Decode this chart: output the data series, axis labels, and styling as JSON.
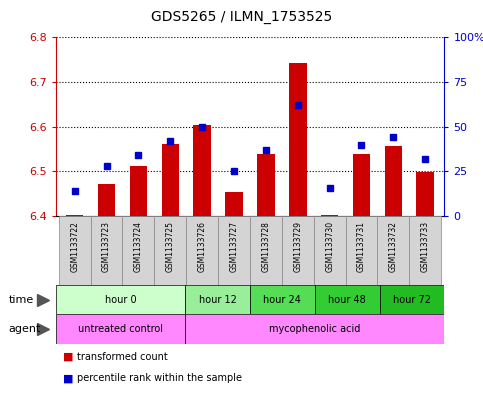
{
  "title": "GDS5265 / ILMN_1753525",
  "samples": [
    "GSM1133722",
    "GSM1133723",
    "GSM1133724",
    "GSM1133725",
    "GSM1133726",
    "GSM1133727",
    "GSM1133728",
    "GSM1133729",
    "GSM1133730",
    "GSM1133731",
    "GSM1133732",
    "GSM1133733"
  ],
  "transformed_counts": [
    6.402,
    6.472,
    6.512,
    6.562,
    6.603,
    6.455,
    6.538,
    6.742,
    6.402,
    6.54,
    6.558,
    6.498
  ],
  "percentile_ranks": [
    14,
    28,
    34,
    42,
    50,
    25,
    37,
    62,
    16,
    40,
    44,
    32
  ],
  "ylim_left": [
    6.4,
    6.8
  ],
  "ylim_right": [
    0,
    100
  ],
  "yticks_left": [
    6.4,
    6.5,
    6.6,
    6.7,
    6.8
  ],
  "yticks_right": [
    0,
    25,
    50,
    75,
    100
  ],
  "ytick_labels_right": [
    "0",
    "25",
    "50",
    "75",
    "100%"
  ],
  "bar_color": "#cc0000",
  "dot_color": "#0000cc",
  "bar_bottom": 6.4,
  "time_groups": [
    {
      "label": "hour 0",
      "start": 0,
      "end": 4,
      "color": "#ccffcc"
    },
    {
      "label": "hour 12",
      "start": 4,
      "end": 6,
      "color": "#99ee99"
    },
    {
      "label": "hour 24",
      "start": 6,
      "end": 8,
      "color": "#55dd55"
    },
    {
      "label": "hour 48",
      "start": 8,
      "end": 10,
      "color": "#33cc33"
    },
    {
      "label": "hour 72",
      "start": 10,
      "end": 12,
      "color": "#22bb22"
    }
  ],
  "agent_groups": [
    {
      "label": "untreated control",
      "start": 0,
      "end": 4,
      "color": "#ff88ff"
    },
    {
      "label": "mycophenolic acid",
      "start": 4,
      "end": 12,
      "color": "#ff88ff"
    }
  ],
  "left_axis_color": "#cc0000",
  "right_axis_color": "#0000cc",
  "arrow_color": "#555555"
}
